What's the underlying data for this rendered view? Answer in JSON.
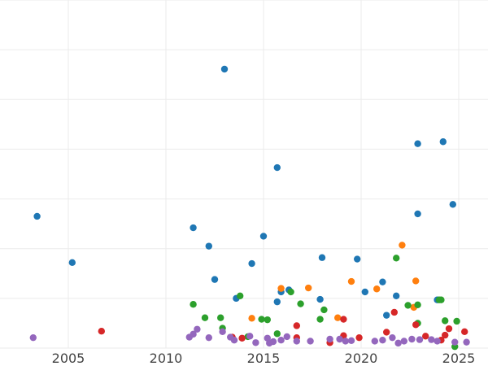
{
  "chart_data": {
    "type": "scatter",
    "title": "",
    "xlabel": "",
    "ylabel": "",
    "xlim": [
      2001.5,
      2026.5
    ],
    "ylim": [
      0,
      7
    ],
    "x_ticks": [
      2005,
      2010,
      2015,
      2020,
      2025
    ],
    "x_tick_labels": [
      "2005",
      "2010",
      "2015",
      "2020",
      "2025"
    ],
    "y_gridlines": [
      0,
      1,
      2,
      3,
      4,
      5,
      6,
      7
    ],
    "grid": true,
    "legend": "none",
    "series": [
      {
        "color": "#1f77b4",
        "points": [
          {
            "x": 2003.4,
            "y": 2.65
          },
          {
            "x": 2005.2,
            "y": 1.72
          },
          {
            "x": 2011.4,
            "y": 2.42
          },
          {
            "x": 2012.2,
            "y": 2.05
          },
          {
            "x": 2012.5,
            "y": 1.38
          },
          {
            "x": 2013.0,
            "y": 5.61
          },
          {
            "x": 2013.6,
            "y": 1.0
          },
          {
            "x": 2014.4,
            "y": 1.7
          },
          {
            "x": 2015.0,
            "y": 2.25
          },
          {
            "x": 2015.7,
            "y": 3.63
          },
          {
            "x": 2015.7,
            "y": 0.93
          },
          {
            "x": 2015.9,
            "y": 1.13
          },
          {
            "x": 2016.3,
            "y": 1.17
          },
          {
            "x": 2017.9,
            "y": 0.98
          },
          {
            "x": 2018.0,
            "y": 1.82
          },
          {
            "x": 2019.8,
            "y": 1.79
          },
          {
            "x": 2020.2,
            "y": 1.13
          },
          {
            "x": 2021.1,
            "y": 1.33
          },
          {
            "x": 2021.3,
            "y": 0.66
          },
          {
            "x": 2021.8,
            "y": 1.05
          },
          {
            "x": 2022.9,
            "y": 4.11
          },
          {
            "x": 2022.9,
            "y": 2.7
          },
          {
            "x": 2023.9,
            "y": 0.97
          },
          {
            "x": 2024.2,
            "y": 4.15
          },
          {
            "x": 2024.7,
            "y": 2.89
          }
        ]
      },
      {
        "color": "#ff7f0e",
        "points": [
          {
            "x": 2014.4,
            "y": 0.6
          },
          {
            "x": 2015.9,
            "y": 1.2
          },
          {
            "x": 2017.3,
            "y": 1.21
          },
          {
            "x": 2018.8,
            "y": 0.61
          },
          {
            "x": 2019.5,
            "y": 1.34
          },
          {
            "x": 2020.8,
            "y": 1.19
          },
          {
            "x": 2022.1,
            "y": 2.07
          },
          {
            "x": 2022.7,
            "y": 0.82
          },
          {
            "x": 2022.8,
            "y": 1.35
          }
        ]
      },
      {
        "color": "#2ca02c",
        "points": [
          {
            "x": 2011.4,
            "y": 0.88
          },
          {
            "x": 2012.0,
            "y": 0.61
          },
          {
            "x": 2012.8,
            "y": 0.61
          },
          {
            "x": 2012.9,
            "y": 0.4
          },
          {
            "x": 2013.8,
            "y": 1.05
          },
          {
            "x": 2014.2,
            "y": 0.23
          },
          {
            "x": 2014.9,
            "y": 0.58
          },
          {
            "x": 2015.2,
            "y": 0.57
          },
          {
            "x": 2015.7,
            "y": 0.29
          },
          {
            "x": 2016.4,
            "y": 1.13
          },
          {
            "x": 2016.9,
            "y": 0.89
          },
          {
            "x": 2017.9,
            "y": 0.58
          },
          {
            "x": 2018.1,
            "y": 0.77
          },
          {
            "x": 2021.8,
            "y": 1.81
          },
          {
            "x": 2022.4,
            "y": 0.86
          },
          {
            "x": 2022.9,
            "y": 0.87
          },
          {
            "x": 2022.9,
            "y": 0.5
          },
          {
            "x": 2024.0,
            "y": 0.97
          },
          {
            "x": 2024.1,
            "y": 0.97
          },
          {
            "x": 2024.3,
            "y": 0.55
          },
          {
            "x": 2024.8,
            "y": 0.03
          },
          {
            "x": 2024.9,
            "y": 0.54
          }
        ]
      },
      {
        "color": "#d62728",
        "points": [
          {
            "x": 2006.7,
            "y": 0.34
          },
          {
            "x": 2013.4,
            "y": 0.22
          },
          {
            "x": 2013.9,
            "y": 0.2
          },
          {
            "x": 2016.7,
            "y": 0.45
          },
          {
            "x": 2016.7,
            "y": 0.21
          },
          {
            "x": 2018.4,
            "y": 0.11
          },
          {
            "x": 2019.1,
            "y": 0.25
          },
          {
            "x": 2019.1,
            "y": 0.58
          },
          {
            "x": 2019.9,
            "y": 0.21
          },
          {
            "x": 2021.3,
            "y": 0.32
          },
          {
            "x": 2021.7,
            "y": 0.72
          },
          {
            "x": 2022.8,
            "y": 0.47
          },
          {
            "x": 2023.3,
            "y": 0.24
          },
          {
            "x": 2024.1,
            "y": 0.16
          },
          {
            "x": 2024.3,
            "y": 0.26
          },
          {
            "x": 2024.5,
            "y": 0.39
          },
          {
            "x": 2025.3,
            "y": 0.33
          }
        ]
      },
      {
        "color": "#9467bd",
        "points": [
          {
            "x": 2003.2,
            "y": 0.21
          },
          {
            "x": 2011.2,
            "y": 0.22
          },
          {
            "x": 2011.4,
            "y": 0.28
          },
          {
            "x": 2011.6,
            "y": 0.38
          },
          {
            "x": 2012.2,
            "y": 0.21
          },
          {
            "x": 2012.9,
            "y": 0.33
          },
          {
            "x": 2013.3,
            "y": 0.22
          },
          {
            "x": 2013.5,
            "y": 0.16
          },
          {
            "x": 2014.3,
            "y": 0.24
          },
          {
            "x": 2014.6,
            "y": 0.11
          },
          {
            "x": 2015.2,
            "y": 0.2
          },
          {
            "x": 2015.3,
            "y": 0.1
          },
          {
            "x": 2015.5,
            "y": 0.13
          },
          {
            "x": 2015.9,
            "y": 0.16
          },
          {
            "x": 2016.2,
            "y": 0.23
          },
          {
            "x": 2016.7,
            "y": 0.14
          },
          {
            "x": 2017.4,
            "y": 0.14
          },
          {
            "x": 2018.4,
            "y": 0.18
          },
          {
            "x": 2018.9,
            "y": 0.18
          },
          {
            "x": 2019.2,
            "y": 0.14
          },
          {
            "x": 2019.5,
            "y": 0.15
          },
          {
            "x": 2020.7,
            "y": 0.14
          },
          {
            "x": 2021.1,
            "y": 0.16
          },
          {
            "x": 2021.6,
            "y": 0.21
          },
          {
            "x": 2021.9,
            "y": 0.1
          },
          {
            "x": 2022.2,
            "y": 0.14
          },
          {
            "x": 2022.6,
            "y": 0.18
          },
          {
            "x": 2023.0,
            "y": 0.17
          },
          {
            "x": 2023.6,
            "y": 0.17
          },
          {
            "x": 2023.9,
            "y": 0.14
          },
          {
            "x": 2024.8,
            "y": 0.12
          },
          {
            "x": 2025.4,
            "y": 0.12
          }
        ]
      }
    ]
  }
}
